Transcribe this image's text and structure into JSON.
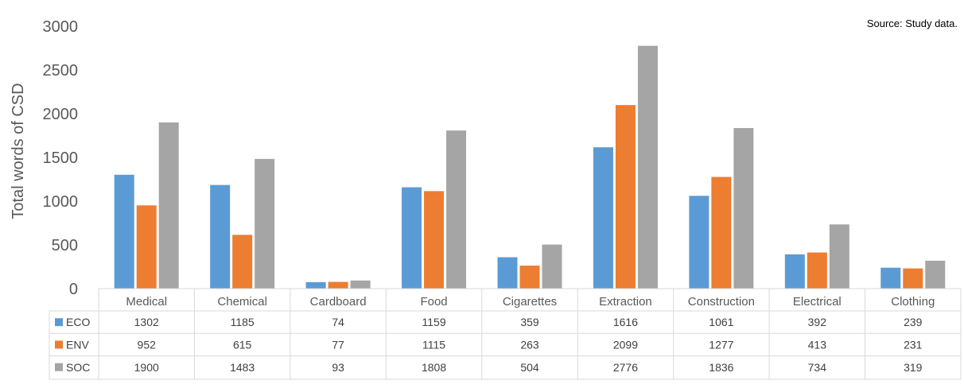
{
  "source_note": "Source: Study data.",
  "chart_data": {
    "type": "bar",
    "title": "",
    "xlabel": "",
    "ylabel": "Total words of CSD",
    "ylim": [
      0,
      3000
    ],
    "yticks": [
      0,
      500,
      1000,
      1500,
      2000,
      2500,
      3000
    ],
    "grid": false,
    "legend": "data-table",
    "categories": [
      "Medical",
      "Chemical",
      "Cardboard",
      "Food",
      "Cigarettes",
      "Extraction",
      "Construction",
      "Electrical",
      "Clothing"
    ],
    "series": [
      {
        "name": "ECO",
        "color": "#5B9BD5",
        "values": [
          1302,
          1185,
          74,
          1159,
          359,
          1616,
          1061,
          392,
          239
        ]
      },
      {
        "name": "ENV",
        "color": "#ED7D31",
        "values": [
          952,
          615,
          77,
          1115,
          263,
          2099,
          1277,
          413,
          231
        ]
      },
      {
        "name": "SOC",
        "color": "#A5A5A5",
        "values": [
          1900,
          1483,
          93,
          1808,
          504,
          2776,
          1836,
          734,
          319
        ]
      }
    ]
  }
}
